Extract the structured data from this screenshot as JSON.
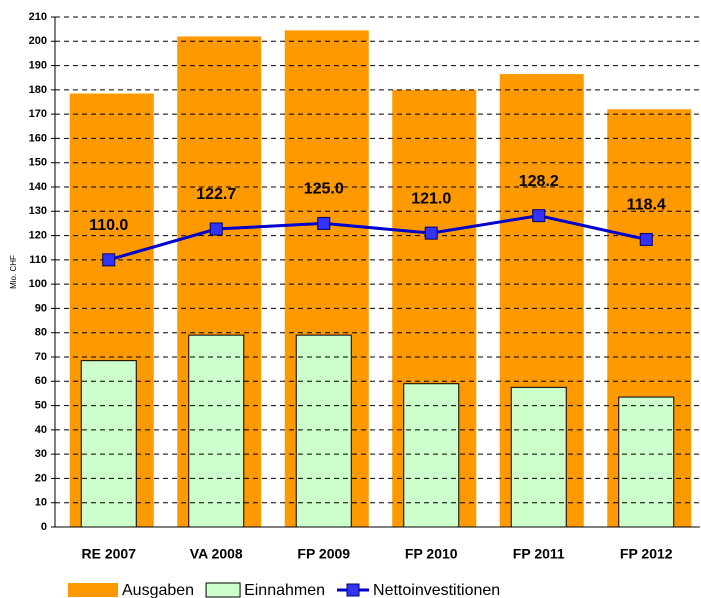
{
  "chart_data": {
    "type": "bar",
    "y_axis_label": "Mio. CHF",
    "categories": [
      "RE 2007",
      "VA 2008",
      "FP 2009",
      "FP 2010",
      "FP 2011",
      "FP 2012"
    ],
    "series": [
      {
        "name": "Ausgaben",
        "color": "#ff9900",
        "values": [
          178.5,
          202,
          204.5,
          180,
          186.5,
          172
        ]
      },
      {
        "name": "Einnahmen",
        "color": "#ccffcc",
        "values": [
          68.5,
          79,
          79,
          59,
          57.5,
          53.5
        ]
      },
      {
        "name": "Nettoinvestitionen",
        "color": "#0000cc",
        "type": "line",
        "values": [
          110.0,
          122.7,
          125.0,
          121.0,
          128.2,
          118.4
        ],
        "value_labels": [
          "110.0",
          "122.7",
          "125.0",
          "121.0",
          "128.2",
          "118.4"
        ]
      }
    ],
    "ylim": [
      0,
      210
    ],
    "yticks": [
      0,
      10,
      20,
      30,
      40,
      50,
      60,
      70,
      80,
      90,
      100,
      110,
      120,
      130,
      140,
      150,
      160,
      170,
      180,
      190,
      200,
      210
    ],
    "grid": true,
    "legend": "bottom"
  }
}
